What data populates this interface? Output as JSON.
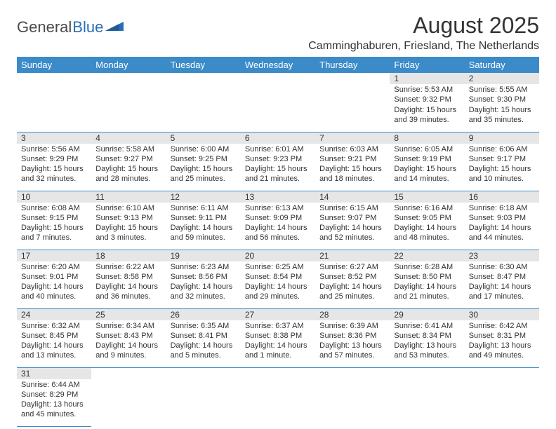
{
  "logo": {
    "part1": "General",
    "part2": "Blue"
  },
  "title": "August 2025",
  "subtitle": "Camminghaburen, Friesland, The Netherlands",
  "colors": {
    "header_bg": "#3b8bc9",
    "header_text": "#ffffff",
    "daynum_bg": "#e6e6e6",
    "border": "#3b8bc9",
    "logo_gray": "#4a4a4a",
    "logo_blue": "#2a6fb5"
  },
  "weekdays": [
    "Sunday",
    "Monday",
    "Tuesday",
    "Wednesday",
    "Thursday",
    "Friday",
    "Saturday"
  ],
  "weeks": [
    [
      null,
      null,
      null,
      null,
      null,
      {
        "d": "1",
        "sr": "5:53 AM",
        "ss": "9:32 PM",
        "dl": "15 hours and 39 minutes."
      },
      {
        "d": "2",
        "sr": "5:55 AM",
        "ss": "9:30 PM",
        "dl": "15 hours and 35 minutes."
      }
    ],
    [
      {
        "d": "3",
        "sr": "5:56 AM",
        "ss": "9:29 PM",
        "dl": "15 hours and 32 minutes."
      },
      {
        "d": "4",
        "sr": "5:58 AM",
        "ss": "9:27 PM",
        "dl": "15 hours and 28 minutes."
      },
      {
        "d": "5",
        "sr": "6:00 AM",
        "ss": "9:25 PM",
        "dl": "15 hours and 25 minutes."
      },
      {
        "d": "6",
        "sr": "6:01 AM",
        "ss": "9:23 PM",
        "dl": "15 hours and 21 minutes."
      },
      {
        "d": "7",
        "sr": "6:03 AM",
        "ss": "9:21 PM",
        "dl": "15 hours and 18 minutes."
      },
      {
        "d": "8",
        "sr": "6:05 AM",
        "ss": "9:19 PM",
        "dl": "15 hours and 14 minutes."
      },
      {
        "d": "9",
        "sr": "6:06 AM",
        "ss": "9:17 PM",
        "dl": "15 hours and 10 minutes."
      }
    ],
    [
      {
        "d": "10",
        "sr": "6:08 AM",
        "ss": "9:15 PM",
        "dl": "15 hours and 7 minutes."
      },
      {
        "d": "11",
        "sr": "6:10 AM",
        "ss": "9:13 PM",
        "dl": "15 hours and 3 minutes."
      },
      {
        "d": "12",
        "sr": "6:11 AM",
        "ss": "9:11 PM",
        "dl": "14 hours and 59 minutes."
      },
      {
        "d": "13",
        "sr": "6:13 AM",
        "ss": "9:09 PM",
        "dl": "14 hours and 56 minutes."
      },
      {
        "d": "14",
        "sr": "6:15 AM",
        "ss": "9:07 PM",
        "dl": "14 hours and 52 minutes."
      },
      {
        "d": "15",
        "sr": "6:16 AM",
        "ss": "9:05 PM",
        "dl": "14 hours and 48 minutes."
      },
      {
        "d": "16",
        "sr": "6:18 AM",
        "ss": "9:03 PM",
        "dl": "14 hours and 44 minutes."
      }
    ],
    [
      {
        "d": "17",
        "sr": "6:20 AM",
        "ss": "9:01 PM",
        "dl": "14 hours and 40 minutes."
      },
      {
        "d": "18",
        "sr": "6:22 AM",
        "ss": "8:58 PM",
        "dl": "14 hours and 36 minutes."
      },
      {
        "d": "19",
        "sr": "6:23 AM",
        "ss": "8:56 PM",
        "dl": "14 hours and 32 minutes."
      },
      {
        "d": "20",
        "sr": "6:25 AM",
        "ss": "8:54 PM",
        "dl": "14 hours and 29 minutes."
      },
      {
        "d": "21",
        "sr": "6:27 AM",
        "ss": "8:52 PM",
        "dl": "14 hours and 25 minutes."
      },
      {
        "d": "22",
        "sr": "6:28 AM",
        "ss": "8:50 PM",
        "dl": "14 hours and 21 minutes."
      },
      {
        "d": "23",
        "sr": "6:30 AM",
        "ss": "8:47 PM",
        "dl": "14 hours and 17 minutes."
      }
    ],
    [
      {
        "d": "24",
        "sr": "6:32 AM",
        "ss": "8:45 PM",
        "dl": "14 hours and 13 minutes."
      },
      {
        "d": "25",
        "sr": "6:34 AM",
        "ss": "8:43 PM",
        "dl": "14 hours and 9 minutes."
      },
      {
        "d": "26",
        "sr": "6:35 AM",
        "ss": "8:41 PM",
        "dl": "14 hours and 5 minutes."
      },
      {
        "d": "27",
        "sr": "6:37 AM",
        "ss": "8:38 PM",
        "dl": "14 hours and 1 minute."
      },
      {
        "d": "28",
        "sr": "6:39 AM",
        "ss": "8:36 PM",
        "dl": "13 hours and 57 minutes."
      },
      {
        "d": "29",
        "sr": "6:41 AM",
        "ss": "8:34 PM",
        "dl": "13 hours and 53 minutes."
      },
      {
        "d": "30",
        "sr": "6:42 AM",
        "ss": "8:31 PM",
        "dl": "13 hours and 49 minutes."
      }
    ],
    [
      {
        "d": "31",
        "sr": "6:44 AM",
        "ss": "8:29 PM",
        "dl": "13 hours and 45 minutes."
      },
      null,
      null,
      null,
      null,
      null,
      null
    ]
  ],
  "labels": {
    "sunrise": "Sunrise: ",
    "sunset": "Sunset: ",
    "daylight": "Daylight: "
  }
}
